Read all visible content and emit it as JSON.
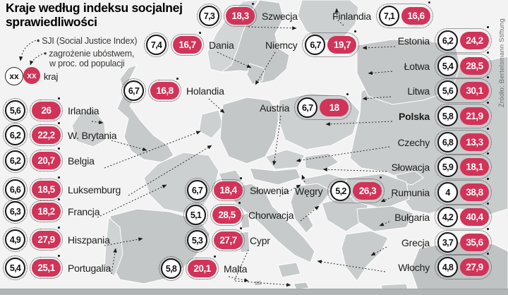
{
  "title": "Kraje według indeksu socjalnej sprawiedliwości",
  "legend": {
    "sji_label": "SJI (Social Justice Index)",
    "poverty_label_line1": "zagrożenie ubóstwem,",
    "poverty_label_line2": "w proc. od populacji",
    "example_value": "xx",
    "example_country_label": "kraj"
  },
  "source": "Źródło: Bertelsmann Stiftung",
  "colors": {
    "accent_red": "#d23358",
    "land": "#c7cacb",
    "background": "#f2f3f2",
    "bottom_bar": "#b1b5b6"
  },
  "chart_data": {
    "type": "map",
    "title": "Kraje według indeksu socjalnej sprawiedliwości",
    "value_labels": [
      "SJI (Social Justice Index)",
      "zagrożenie ubóstwem, w proc. od populacji"
    ],
    "series": [
      {
        "id": "szwecja",
        "country": "Szwecja",
        "sji": "7,3",
        "poverty": "18,3"
      },
      {
        "id": "finlandia",
        "country": "Finlandia",
        "sji": "7,1",
        "poverty": "16,6"
      },
      {
        "id": "dania",
        "country": "Dania",
        "sji": "7,4",
        "poverty": "16,7"
      },
      {
        "id": "niemcy",
        "country": "Niemcy",
        "sji": "6,7",
        "poverty": "19,7"
      },
      {
        "id": "holandia",
        "country": "Holandia",
        "sji": "6,7",
        "poverty": "16,8"
      },
      {
        "id": "austria",
        "country": "Austria",
        "sji": "6,7",
        "poverty": "18"
      },
      {
        "id": "estonia",
        "country": "Estonia",
        "sji": "6,2",
        "poverty": "24,2"
      },
      {
        "id": "lotwa",
        "country": "Łotwa",
        "sji": "5,4",
        "poverty": "28,5"
      },
      {
        "id": "litwa",
        "country": "Litwa",
        "sji": "5,6",
        "poverty": "30,1"
      },
      {
        "id": "polska",
        "country": "Polska",
        "sji": "5,8",
        "poverty": "21,9",
        "bold": true
      },
      {
        "id": "czechy",
        "country": "Czechy",
        "sji": "6,8",
        "poverty": "13,3"
      },
      {
        "id": "slowacja",
        "country": "Słowacja",
        "sji": "5,9",
        "poverty": "18,1"
      },
      {
        "id": "rumunia",
        "country": "Rumunia",
        "sji": "4",
        "poverty": "38,8"
      },
      {
        "id": "bulgaria",
        "country": "Bułgaria",
        "sji": "4,2",
        "poverty": "40,4"
      },
      {
        "id": "grecja",
        "country": "Grecja",
        "sji": "3,7",
        "poverty": "35,6"
      },
      {
        "id": "wlochy",
        "country": "Włochy",
        "sji": "4,8",
        "poverty": "27,9"
      },
      {
        "id": "irlandia",
        "country": "Irlandia",
        "sji": "5,6",
        "poverty": "26"
      },
      {
        "id": "wbrytania",
        "country": "W. Brytania",
        "sji": "6,2",
        "poverty": "22,2"
      },
      {
        "id": "belgia",
        "country": "Belgia",
        "sji": "6,2",
        "poverty": "20,7"
      },
      {
        "id": "luksemburg",
        "country": "Luksemburg",
        "sji": "6,6",
        "poverty": "18,5"
      },
      {
        "id": "francja",
        "country": "Francja",
        "sji": "6,3",
        "poverty": "18,2"
      },
      {
        "id": "hiszpania",
        "country": "Hiszpania",
        "sji": "4,9",
        "poverty": "27,9"
      },
      {
        "id": "portugalia",
        "country": "Portugalia",
        "sji": "5,4",
        "poverty": "25,1"
      },
      {
        "id": "slowenia",
        "country": "Słowenia",
        "sji": "6,7",
        "poverty": "18,4"
      },
      {
        "id": "chorwacja",
        "country": "Chorwacja",
        "sji": "5,1",
        "poverty": "28,5"
      },
      {
        "id": "wegry",
        "country": "Węgry",
        "sji": "5,2",
        "poverty": "26,3"
      },
      {
        "id": "cypr",
        "country": "Cypr",
        "sji": "5,3",
        "poverty": "27,7"
      },
      {
        "id": "malta",
        "country": "Malta",
        "sji": "5,8",
        "poverty": "20,1"
      }
    ]
  }
}
